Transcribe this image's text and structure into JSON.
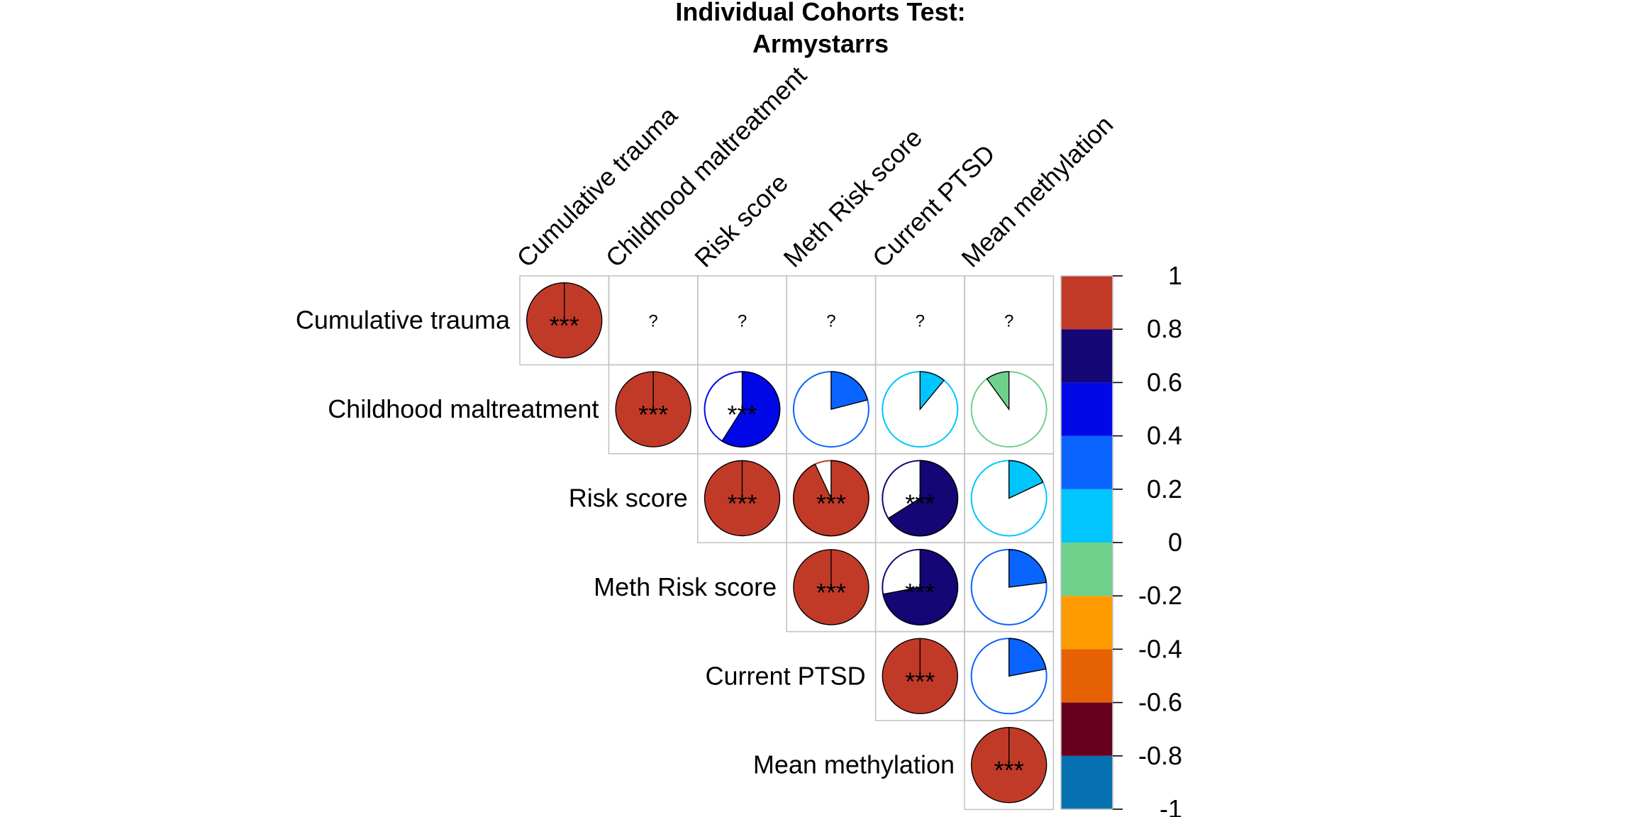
{
  "chart_data": {
    "type": "heatmap",
    "title_lines": [
      "Individual Cohorts Test:",
      "Armystarrs"
    ],
    "variables": [
      "Cumulative trauma",
      "Childhood maltreatment",
      "Risk score",
      "Meth Risk score",
      "Current PTSD",
      "Mean methylation"
    ],
    "matrix_shape": "upper-triangular",
    "cell_glyph": "pie",
    "cells": [
      {
        "row": 0,
        "col": 0,
        "value": 1.0,
        "label": "***"
      },
      {
        "row": 0,
        "col": 1,
        "value": null,
        "label": "?"
      },
      {
        "row": 0,
        "col": 2,
        "value": null,
        "label": "?"
      },
      {
        "row": 0,
        "col": 3,
        "value": null,
        "label": "?"
      },
      {
        "row": 0,
        "col": 4,
        "value": null,
        "label": "?"
      },
      {
        "row": 0,
        "col": 5,
        "value": null,
        "label": "?"
      },
      {
        "row": 1,
        "col": 1,
        "value": 1.0,
        "label": "***"
      },
      {
        "row": 1,
        "col": 2,
        "value": 0.59,
        "label": "***"
      },
      {
        "row": 1,
        "col": 3,
        "value": 0.21,
        "label": ""
      },
      {
        "row": 1,
        "col": 4,
        "value": 0.11,
        "label": ""
      },
      {
        "row": 1,
        "col": 5,
        "value": -0.1,
        "label": ""
      },
      {
        "row": 2,
        "col": 2,
        "value": 1.0,
        "label": "***"
      },
      {
        "row": 2,
        "col": 3,
        "value": 0.93,
        "label": "***"
      },
      {
        "row": 2,
        "col": 4,
        "value": 0.66,
        "label": "***"
      },
      {
        "row": 2,
        "col": 5,
        "value": 0.18,
        "label": ""
      },
      {
        "row": 3,
        "col": 3,
        "value": 1.0,
        "label": "***"
      },
      {
        "row": 3,
        "col": 4,
        "value": 0.72,
        "label": "***"
      },
      {
        "row": 3,
        "col": 5,
        "value": 0.23,
        "label": ""
      },
      {
        "row": 4,
        "col": 4,
        "value": 1.0,
        "label": "***"
      },
      {
        "row": 4,
        "col": 5,
        "value": 0.22,
        "label": ""
      },
      {
        "row": 5,
        "col": 5,
        "value": 1.0,
        "label": "***"
      }
    ],
    "colorbar": {
      "ticks": [
        "1",
        "0.8",
        "0.6",
        "0.4",
        "0.2",
        "0",
        "-0.2",
        "-0.4",
        "-0.6",
        "-0.8",
        "-1"
      ],
      "range": [
        -1,
        1
      ],
      "bins": [
        {
          "from": -1.0,
          "to": -0.8,
          "color": "#0571b0"
        },
        {
          "from": -0.8,
          "to": -0.6,
          "color": "#67001f"
        },
        {
          "from": -0.6,
          "to": -0.4,
          "color": "#e66101"
        },
        {
          "from": -0.4,
          "to": -0.2,
          "color": "#fd9b00"
        },
        {
          "from": -0.2,
          "to": 0.0,
          "color": "#6fd08c"
        },
        {
          "from": 0.0,
          "to": 0.2,
          "color": "#00c5ff"
        },
        {
          "from": 0.2,
          "to": 0.4,
          "color": "#0a64ff"
        },
        {
          "from": 0.4,
          "to": 0.6,
          "color": "#0008e8"
        },
        {
          "from": 0.6,
          "to": 0.8,
          "color": "#140675"
        },
        {
          "from": 0.8,
          "to": 1.0,
          "color": "#c13a28"
        }
      ]
    }
  }
}
